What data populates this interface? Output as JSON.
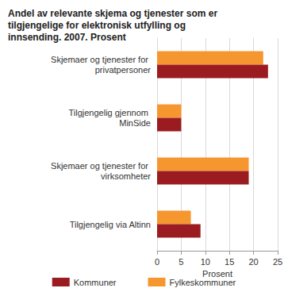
{
  "chart_data": {
    "type": "bar",
    "orientation": "horizontal",
    "title": "Andel av relevante skjema og tjenester som er tilgjengelige for elektronisk utfylling og innsending. 2007. Prosent",
    "x_label": "Prosent",
    "categories": [
      "Skjemaer og tjenester for privatpersoner",
      "Tilgjengelig gjennom MinSide",
      "Skjemaer og tjenester for virksomheter",
      "Tilgjengelig via Altinn"
    ],
    "series": [
      {
        "name": "Kommuner",
        "color": "#9b1c20",
        "values": [
          23,
          5,
          19,
          9
        ]
      },
      {
        "name": "Fylkeskommuner",
        "color": "#f6962f",
        "values": [
          22,
          5,
          19,
          7
        ]
      }
    ],
    "xlim": [
      0,
      25
    ],
    "xticks": [
      0,
      5,
      10,
      15,
      20,
      25
    ],
    "grid": true,
    "legend": "bottom"
  }
}
